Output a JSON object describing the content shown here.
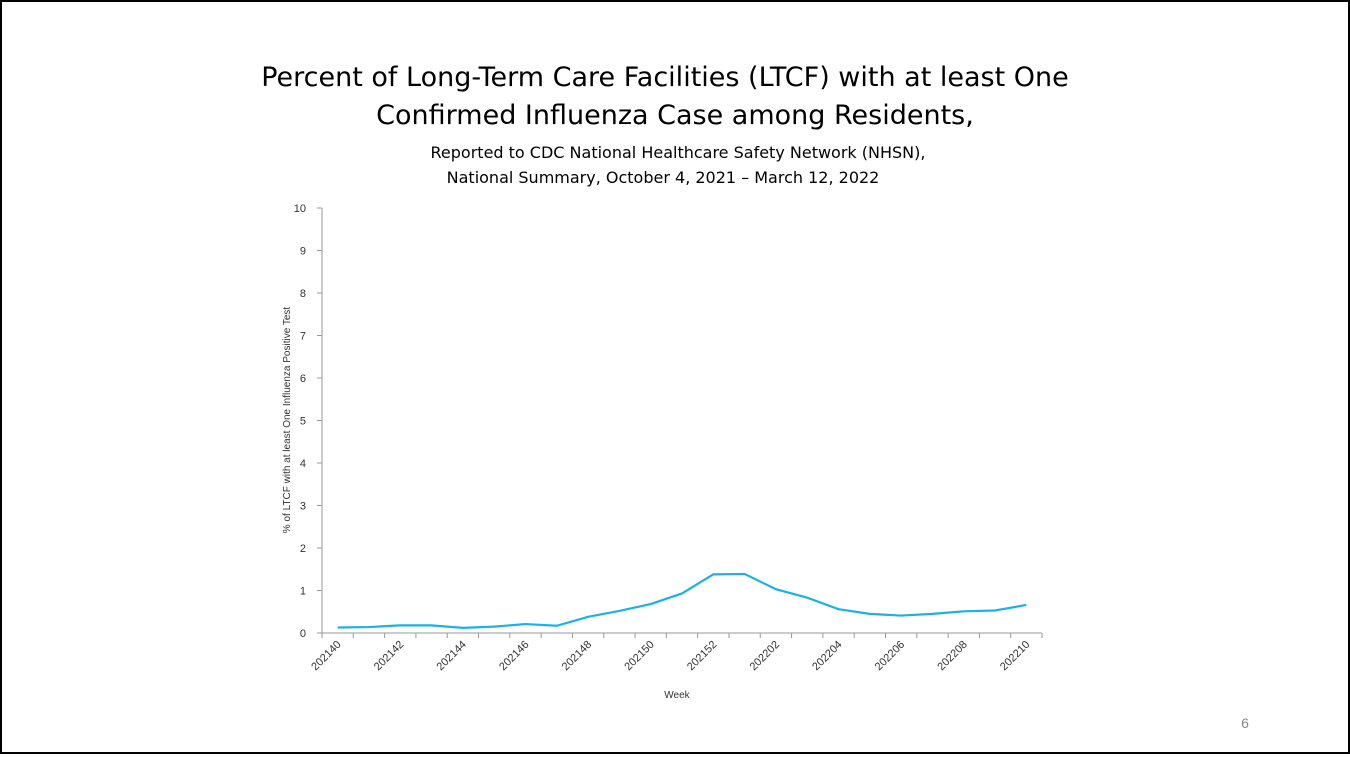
{
  "chart_data": {
    "type": "line",
    "title": [
      "Percent of Long-Term Care Facilities (LTCF) with at least One",
      "Confirmed Influenza Case among Residents,"
    ],
    "subtitle": [
      "Reported to CDC National Healthcare Safety Network (NHSN),",
      "National Summary, October 4, 2021 – March 12, 2022"
    ],
    "x_label": "Week",
    "y_label": "% of LTCF with at least One Influenza Positive Test",
    "categories": [
      "202140",
      null,
      "202142",
      null,
      "202144",
      null,
      "202146",
      null,
      "202148",
      null,
      "202150",
      null,
      "202152",
      null,
      "202202",
      null,
      "202204",
      null,
      "202206",
      null,
      "202208",
      null,
      "202210"
    ],
    "series": [
      {
        "name": "LTCF",
        "color": "#1cb0ea",
        "values": [
          0.13,
          0.14,
          0.18,
          0.18,
          0.12,
          0.15,
          0.21,
          0.17,
          0.38,
          0.52,
          0.68,
          0.93,
          1.38,
          1.39,
          1.03,
          0.83,
          0.56,
          0.45,
          0.41,
          0.45,
          0.51,
          0.53,
          0.66
        ]
      }
    ],
    "ylim": [
      0,
      10
    ],
    "yticks": [
      0,
      1,
      2,
      3,
      4,
      5,
      6,
      7,
      8,
      9,
      10
    ]
  },
  "page_number": 6
}
